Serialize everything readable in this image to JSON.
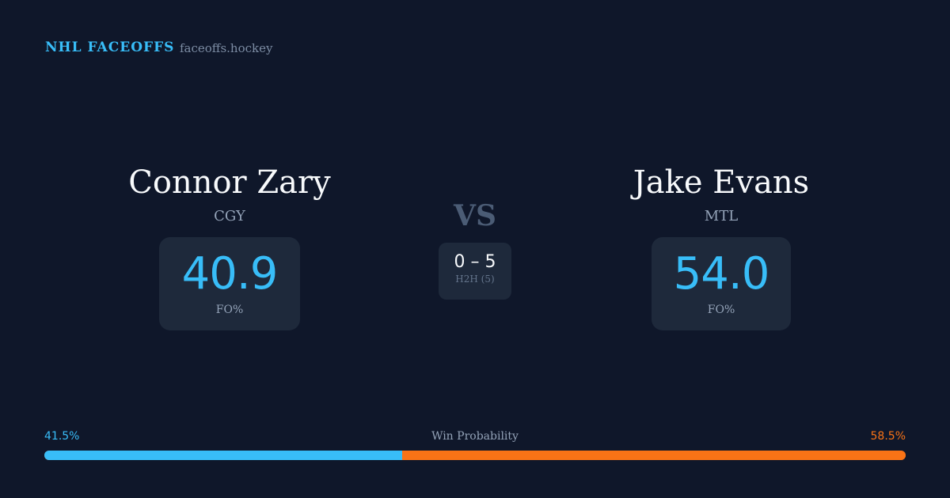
{
  "header": {
    "brand": "NHL FACEOFFS",
    "site": "faceoffs.hockey"
  },
  "left": {
    "name": "Connor Zary",
    "team": "CGY",
    "fo_value": "40.9",
    "fo_label": "FO%"
  },
  "right": {
    "name": "Jake Evans",
    "team": "MTL",
    "fo_value": "54.0",
    "fo_label": "FO%"
  },
  "center": {
    "vs": "VS",
    "h2h_score": "0 – 5",
    "h2h_label": "H2H (5)"
  },
  "win_probability": {
    "title": "Win Probability",
    "left_label": "41.5%",
    "right_label": "58.5%",
    "left_pct": 41.5,
    "right_pct": 58.5,
    "left_color": "#38bdf8",
    "right_color": "#f97316"
  }
}
